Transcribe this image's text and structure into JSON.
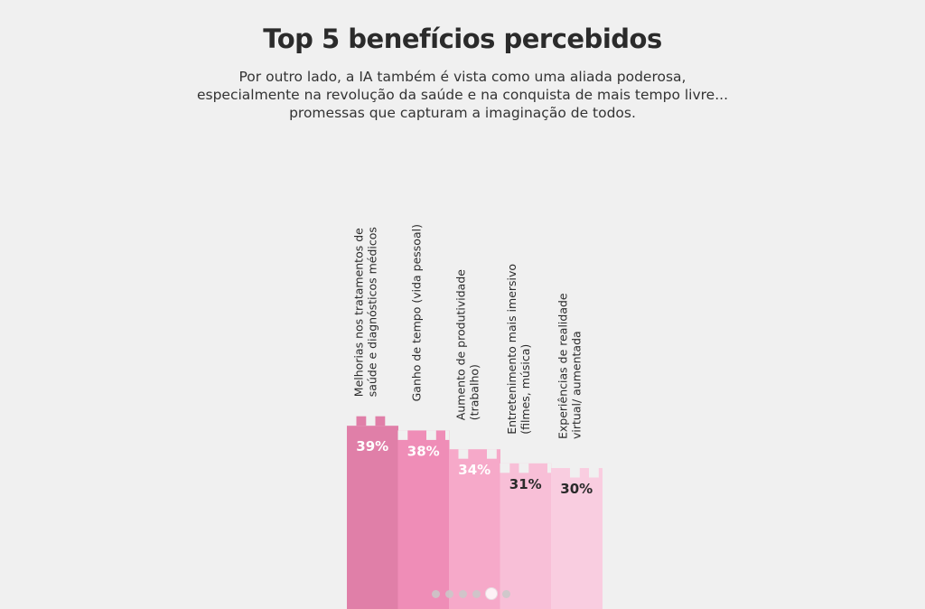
{
  "title": "Top 5 benefícios percebidos",
  "subtitle_lines": [
    "Por outro lado, a IA também é vista como uma aliada poderosa,",
    "especialmente na revolução da saúde e na conquista de mais tempo livre...",
    "promessas que capturam a imaginação de todos."
  ],
  "chart_data": {
    "type": "bar",
    "categories": [
      [
        "Melhorias nos tratamentos de",
        "saúde e diagnósticos médicos"
      ],
      [
        "Ganho de tempo (vida pessoal)"
      ],
      [
        "Aumento de produtividade",
        "(trabalho)"
      ],
      [
        "Entretenimento mais imersivo",
        "(filmes, música)"
      ],
      [
        "Experiências de realidade",
        "virtual/ aumentada"
      ]
    ],
    "values": [
      39,
      38,
      34,
      31,
      30
    ],
    "value_labels": [
      "39%",
      "38%",
      "34%",
      "31%",
      "30%"
    ],
    "colors": [
      "#e07fa8",
      "#ef8db7",
      "#f6a9c9",
      "#f8bfd7",
      "#f9cde0"
    ],
    "value_label_colors": [
      "#ffffff",
      "#ffffff",
      "#ffffff",
      "#2a2a2a",
      "#2a2a2a"
    ]
  },
  "carousel": {
    "dot_count": 6,
    "active_index": 4
  }
}
